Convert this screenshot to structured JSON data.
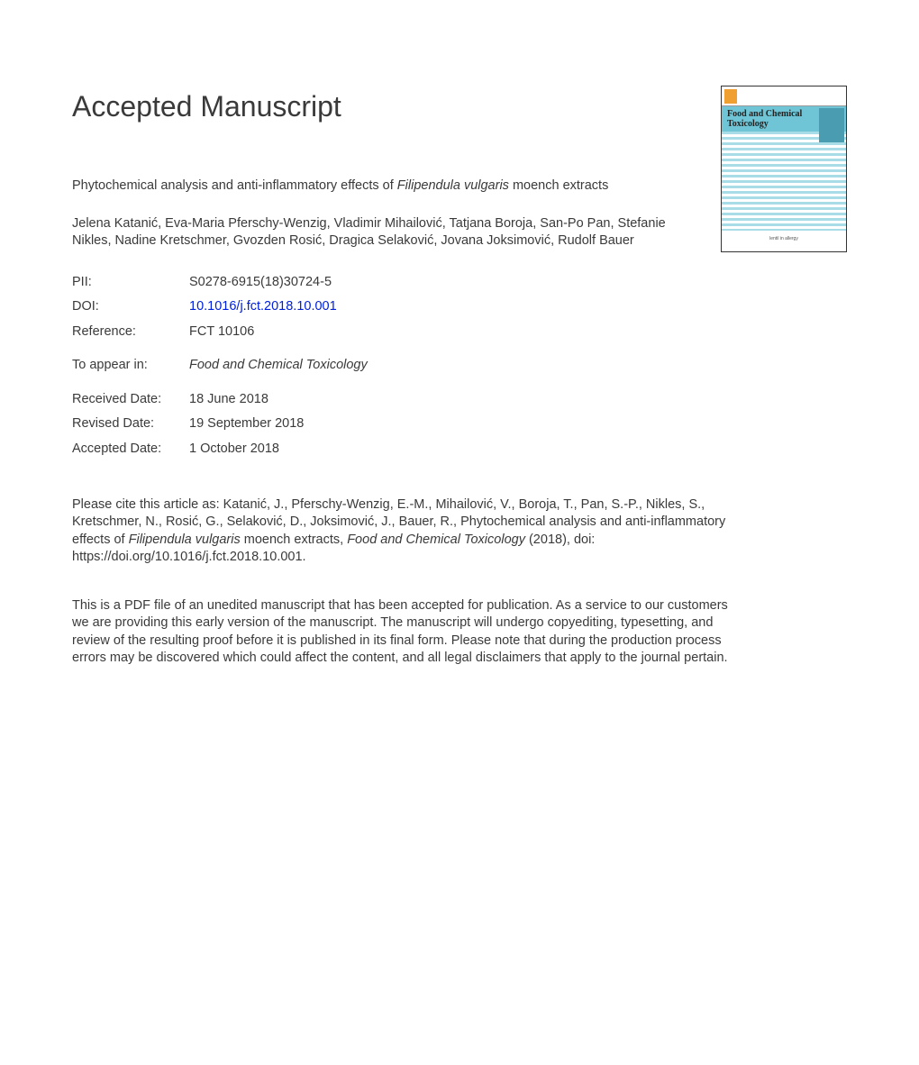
{
  "heading": "Accepted Manuscript",
  "journalCover": {
    "title": "Food and Chemical Toxicology",
    "footer": "lentil in allergy"
  },
  "article": {
    "titlePrefix": "Phytochemical analysis and anti-inflammatory effects of ",
    "speciesName": "Filipendula vulgaris",
    "titleSuffix": " moench extracts",
    "authors": "Jelena Katanić, Eva-Maria Pferschy-Wenzig, Vladimir Mihailović, Tatjana Boroja, San-Po Pan, Stefanie Nikles, Nadine Kretschmer, Gvozden Rosić, Dragica Selaković, Jovana Joksimović, Rudolf Bauer"
  },
  "meta": {
    "piiLabel": "PII:",
    "pii": "S0278-6915(18)30724-5",
    "doiLabel": "DOI:",
    "doi": "10.1016/j.fct.2018.10.001",
    "referenceLabel": "Reference:",
    "reference": "FCT 10106",
    "toAppearLabel": "To appear in:",
    "toAppear": "Food and Chemical Toxicology",
    "receivedLabel": "Received Date:",
    "received": "18 June 2018",
    "revisedLabel": "Revised Date:",
    "revised": "19 September 2018",
    "acceptedLabel": "Accepted Date:",
    "accepted": "1 October 2018"
  },
  "citation": {
    "prefix": "Please cite this article as: Katanić, J., Pferschy-Wenzig, E.-M., Mihailović, V., Boroja, T., Pan, S.-P., Nikles, S., Kretschmer, N., Rosić, G., Selaković, D., Joksimović, J., Bauer, R., Phytochemical analysis and anti-inflammatory effects of ",
    "species": "Filipendula vulgaris",
    "middle": " moench extracts, ",
    "journal": "Food and Chemical Toxicology",
    "suffix": " (2018), doi: https://doi.org/10.1016/j.fct.2018.10.001."
  },
  "disclaimer": "This is a PDF file of an unedited manuscript that has been accepted for publication. As a service to our customers we are providing this early version of the manuscript. The manuscript will undergo copyediting, typesetting, and review of the resulting proof before it is published in its final form. Please note that during the production process errors may be discovered which could affect the content, and all legal disclaimers that apply to the journal pertain.",
  "colors": {
    "text": "#3a3a3a",
    "link": "#0020dd",
    "coverBand": "#6fc5d5",
    "coverStripeLight": "#a8dce6",
    "background": "#ffffff"
  },
  "typography": {
    "headingSize": 32,
    "bodySize": 14.5,
    "fontFamily": "Arial"
  }
}
